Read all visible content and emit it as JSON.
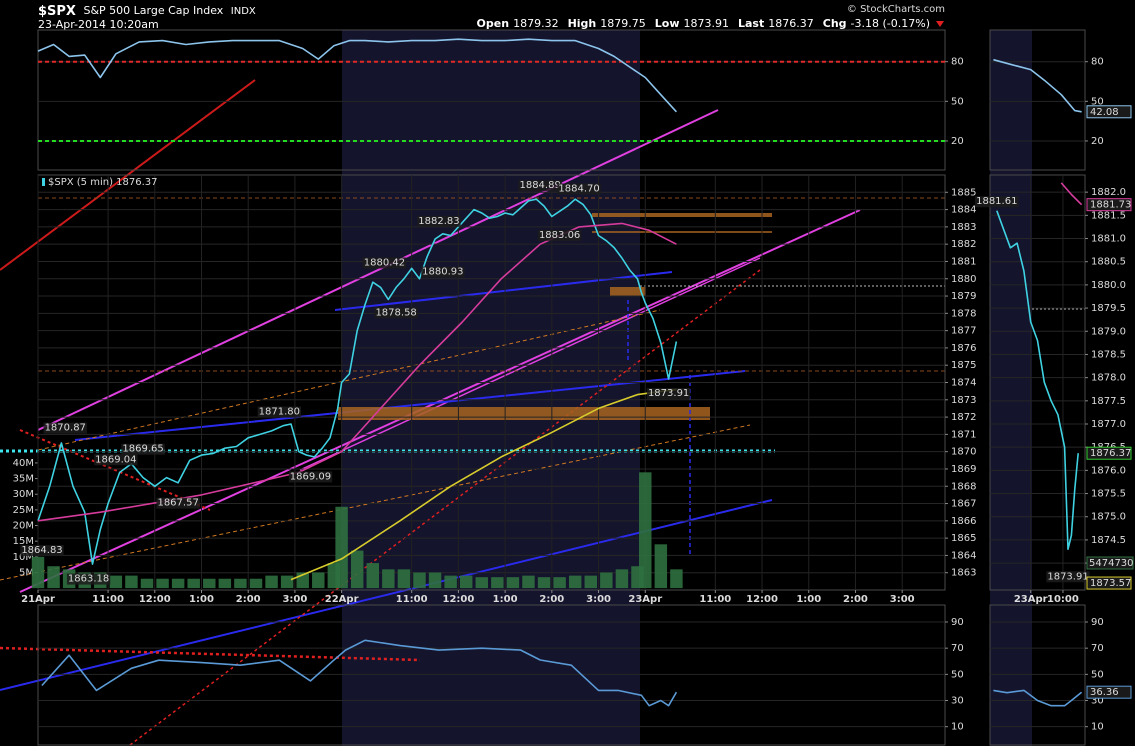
{
  "header": {
    "symbol": "$SPX",
    "name": "S&P 500 Large Cap Index",
    "exchange": "INDX",
    "timestamp": "23-Apr-2014 10:20am",
    "credit": "© StockCharts.com",
    "stats": [
      {
        "label": "Open",
        "value": "1879.32"
      },
      {
        "label": "High",
        "value": "1879.75"
      },
      {
        "label": "Low",
        "value": "1873.91"
      },
      {
        "label": "Last",
        "value": "1876.37"
      },
      {
        "label": "Chg",
        "value": "-3.18 (-0.17%)"
      }
    ]
  },
  "chart_data": [
    {
      "type": "line",
      "xlim": [
        0,
        233
      ],
      "ylim": [
        -2,
        104
      ],
      "yticks": [
        20,
        50,
        80
      ],
      "grid": true,
      "reference_lines": [
        {
          "value": 80,
          "color": "#e02828"
        },
        {
          "value": 20,
          "color": "#22dd22"
        }
      ],
      "series": [
        {
          "color": "#8cc4ec",
          "x": [
            0,
            4,
            8,
            12,
            16,
            20,
            26,
            32,
            38,
            44,
            50,
            56,
            62,
            68,
            72,
            76,
            80,
            84,
            90,
            96,
            102,
            108,
            114,
            120,
            126,
            132,
            138,
            144,
            148,
            152,
            156,
            160,
            164
          ],
          "values": [
            88,
            93,
            84,
            85,
            68,
            86,
            95,
            96,
            93,
            95,
            96,
            96,
            96,
            90,
            82,
            92,
            96,
            96,
            95,
            96,
            96,
            97,
            96,
            96,
            97,
            96,
            96,
            90,
            84,
            76,
            68,
            55,
            42.08
          ]
        }
      ]
    },
    {
      "type": "line",
      "legend": "$SPX (5 min) 1876.37",
      "xlim": [
        0,
        233
      ],
      "ylim": [
        1862,
        1886
      ],
      "yticks": [
        1863,
        1864,
        1865,
        1866,
        1867,
        1868,
        1869,
        1870,
        1871,
        1872,
        1873,
        1874,
        1875,
        1876,
        1877,
        1878,
        1879,
        1880,
        1881,
        1882,
        1883,
        1884,
        1885
      ],
      "y2lim": [
        -600000,
        132000000
      ],
      "y2ticks": [
        {
          "value": 5000000,
          "label": "5M"
        },
        {
          "value": 10000000,
          "label": "10M"
        },
        {
          "value": 15000000,
          "label": "15M"
        },
        {
          "value": 20000000,
          "label": "20M"
        },
        {
          "value": 25000000,
          "label": "25M"
        },
        {
          "value": 30000000,
          "label": "30M"
        },
        {
          "value": 35000000,
          "label": "35M"
        },
        {
          "value": 40000000,
          "label": "40M"
        }
      ],
      "xticks": [
        {
          "value": 0,
          "label": "21Apr"
        },
        {
          "value": 18,
          "label": "11:00"
        },
        {
          "value": 30,
          "label": "12:00"
        },
        {
          "value": 42,
          "label": "1:00"
        },
        {
          "value": 54,
          "label": "2:00"
        },
        {
          "value": 66,
          "label": "3:00"
        },
        {
          "value": 78,
          "label": "22Apr"
        },
        {
          "value": 96,
          "label": "11:00"
        },
        {
          "value": 108,
          "label": "12:00"
        },
        {
          "value": 120,
          "label": "1:00"
        },
        {
          "value": 132,
          "label": "2:00"
        },
        {
          "value": 144,
          "label": "3:00"
        },
        {
          "value": 156,
          "label": "23Apr"
        },
        {
          "value": 174,
          "label": "11:00"
        },
        {
          "value": 186,
          "label": "12:00"
        },
        {
          "value": 198,
          "label": "1:00"
        },
        {
          "value": 210,
          "label": "2:00"
        },
        {
          "value": 222,
          "label": "3:00"
        }
      ],
      "grid": true,
      "series": [
        {
          "color": "#3fd2e2",
          "x": [
            0,
            3,
            6,
            9,
            12,
            14,
            16,
            18,
            21,
            24,
            27,
            30,
            33,
            36,
            39,
            42,
            45,
            48,
            51,
            54,
            57,
            60,
            63,
            65,
            67,
            69,
            71,
            73,
            75,
            77,
            78,
            80,
            82,
            84,
            86,
            88,
            90,
            92,
            94,
            96,
            98,
            100,
            102,
            104,
            106,
            108,
            110,
            112,
            114,
            116,
            118,
            120,
            122,
            124,
            126,
            128,
            130,
            132,
            134,
            136,
            138,
            140,
            142,
            144,
            146,
            148,
            150,
            152,
            154,
            155,
            156,
            158,
            160,
            162,
            164
          ],
          "values": [
            1866,
            1868,
            1870.5,
            1868,
            1866.5,
            1863.5,
            1865.5,
            1867,
            1868.8,
            1869.3,
            1868.5,
            1868,
            1868.5,
            1868.2,
            1869.5,
            1869.8,
            1869.9,
            1870.2,
            1870.3,
            1870.8,
            1871,
            1871.2,
            1871.5,
            1871.6,
            1870,
            1869.8,
            1869.7,
            1870.2,
            1870.8,
            1872.5,
            1874,
            1874.5,
            1877,
            1878.5,
            1879.8,
            1879.5,
            1878.8,
            1879.5,
            1880,
            1880.6,
            1880,
            1881.3,
            1882.3,
            1882.6,
            1882.5,
            1883,
            1883.5,
            1884,
            1883.8,
            1883.5,
            1883.6,
            1883.8,
            1883.7,
            1884.1,
            1884.5,
            1884.6,
            1884.2,
            1883.6,
            1883.9,
            1884.2,
            1884.6,
            1884.3,
            1883.7,
            1882.5,
            1882.2,
            1881.8,
            1881.2,
            1880.5,
            1880,
            1879.2,
            1878.6,
            1877.7,
            1876.3,
            1874.2,
            1876.37
          ]
        },
        {
          "color": "#d63c9c",
          "x": [
            0,
            16,
            42,
            67,
            78,
            88,
            98,
            109,
            119,
            129,
            139,
            150,
            157,
            164
          ],
          "values": [
            1866,
            1866.5,
            1867.5,
            1868.8,
            1870,
            1872.5,
            1875,
            1877.5,
            1880,
            1882,
            1883,
            1883.2,
            1882.8,
            1882
          ]
        },
        {
          "color": "#d8cc2c",
          "x": [
            65,
            78,
            93,
            106,
            119,
            131,
            144,
            154,
            164
          ],
          "values": [
            1862.6,
            1863.8,
            1866,
            1868,
            1869.7,
            1871,
            1872.5,
            1873.3,
            1873.6
          ]
        },
        {
          "type": "bar",
          "axis": "y2",
          "color": "#2f7040",
          "x": [
            0,
            4,
            8,
            12,
            16,
            20,
            24,
            28,
            32,
            36,
            40,
            44,
            48,
            52,
            56,
            60,
            64,
            68,
            72,
            76,
            78,
            82,
            86,
            90,
            94,
            98,
            102,
            106,
            110,
            114,
            118,
            122,
            126,
            130,
            134,
            138,
            142,
            146,
            150,
            154,
            156,
            160,
            164
          ],
          "values": [
            10000000,
            7000000,
            6000000,
            5000000,
            5000000,
            4000000,
            4000000,
            3000000,
            3000000,
            3000000,
            3000000,
            3000000,
            3000000,
            3000000,
            3000000,
            4000000,
            4000000,
            5000000,
            5000000,
            8000000,
            26000000,
            12000000,
            8000000,
            6000000,
            6000000,
            5000000,
            5000000,
            4000000,
            4000000,
            3500000,
            3500000,
            3500000,
            4000000,
            3500000,
            3500000,
            4000000,
            4000000,
            5000000,
            6000000,
            7000000,
            37000000,
            14000000,
            6000000
          ]
        }
      ],
      "annotations": [
        {
          "x": 7,
          "value": 1870.87
        },
        {
          "x": 0,
          "value": 1864.83
        },
        {
          "x": 13,
          "value": 1863.18
        },
        {
          "x": 20,
          "value": 1869.04
        },
        {
          "x": 27,
          "value": 1869.65
        },
        {
          "x": 36,
          "value": 1867.57
        },
        {
          "x": 62,
          "value": 1871.8,
          "label": "1871.80"
        },
        {
          "x": 70,
          "value": 1869.09
        },
        {
          "x": 89,
          "value": 1880.42
        },
        {
          "x": 92,
          "value": 1878.58
        },
        {
          "x": 104,
          "value": 1880.93
        },
        {
          "x": 103,
          "value": 1882.83
        },
        {
          "x": 129,
          "value": 1884.89
        },
        {
          "x": 139,
          "value": 1884.7,
          "label": "1884.70"
        },
        {
          "x": 134,
          "value": 1883.06
        },
        {
          "x": 162,
          "value": 1873.91
        }
      ]
    },
    {
      "type": "line",
      "xlim": [
        0,
        233
      ],
      "ylim": [
        -4,
        103
      ],
      "yticks": [
        10,
        30,
        50,
        70,
        90
      ],
      "grid": true,
      "series": [
        {
          "color": "#5a9ad6",
          "x": [
            1,
            8,
            15,
            24,
            31,
            42,
            52,
            62,
            70,
            76,
            79,
            84,
            93,
            103,
            114,
            124,
            129,
            137,
            144,
            149,
            155,
            157,
            160,
            162,
            164
          ],
          "values": [
            41.5,
            64.6,
            37.7,
            54.6,
            60.8,
            59,
            57,
            60.8,
            45,
            60.8,
            68.5,
            76,
            72,
            68.5,
            70,
            68.5,
            61,
            57,
            37.7,
            37.7,
            34,
            26,
            30,
            26,
            36.36
          ]
        }
      ]
    },
    {
      "type": "line",
      "xlim": [
        -1,
        27
      ],
      "ylim": [
        -2,
        104
      ],
      "yticks": [
        20,
        50,
        80
      ],
      "grid": true,
      "series": [
        {
          "color": "#8cc4ec",
          "x": [
            0,
            5,
            11,
            15,
            20,
            24,
            26
          ],
          "values": [
            81.5,
            78,
            74,
            66,
            55,
            43,
            42.08
          ]
        }
      ],
      "axis_markers": [
        {
          "value": 42.08,
          "color": "#8cc4ec"
        }
      ]
    },
    {
      "type": "line",
      "xlim": [
        -1,
        27
      ],
      "ylim": [
        1873.42,
        1882.37
      ],
      "yticks": [
        {
          "value": 1874,
          "label": "1874.0"
        },
        1874.5,
        {
          "value": 1875,
          "label": "1875.0"
        },
        1875.5,
        {
          "value": 1876,
          "label": "1876.0"
        },
        1876.5,
        {
          "value": 1877,
          "label": "1877.0"
        },
        1877.5,
        {
          "value": 1878,
          "label": "1878.0"
        },
        1878.5,
        {
          "value": 1879,
          "label": "1879.0"
        },
        1879.5,
        {
          "value": 1880,
          "label": "1880.0"
        },
        1880.5,
        {
          "value": 1881,
          "label": "1881.0"
        },
        1881.5,
        {
          "value": 1882,
          "label": "1882.0"
        }
      ],
      "xticks": [
        {
          "value": 11,
          "label": "23Apr"
        },
        {
          "value": 20.5,
          "label": "10:00"
        }
      ],
      "grid": true,
      "series": [
        {
          "color": "#3fd2e2",
          "x": [
            1,
            3,
            5,
            7,
            9,
            11,
            13,
            15,
            17,
            19,
            21,
            22,
            23,
            24,
            25
          ],
          "values": [
            1881.6,
            1881.2,
            1880.8,
            1880.9,
            1880.3,
            1879.2,
            1878.8,
            1877.9,
            1877.5,
            1877.2,
            1876.5,
            1874.3,
            1874.6,
            1875.6,
            1876.37
          ]
        },
        {
          "color": "#d63c9c",
          "x": [
            20,
            23,
            26
          ],
          "values": [
            1882.2,
            1881.95,
            1881.73
          ]
        }
      ],
      "annotations": [
        {
          "x": 1,
          "value": 1881.61
        },
        {
          "x": 22,
          "value": 1873.91
        }
      ],
      "axis_markers": [
        {
          "value": 1881.73,
          "color": "#d63c9c"
        },
        {
          "value": 1876.37,
          "color": "#33cc33"
        },
        {
          "value": 1873.57,
          "color": "#d8cc2c"
        }
      ],
      "volume_marker": 5474730
    },
    {
      "type": "line",
      "xlim": [
        -1,
        27
      ],
      "ylim": [
        -4,
        103
      ],
      "yticks": [
        10,
        30,
        50,
        70,
        90
      ],
      "grid": true,
      "series": [
        {
          "color": "#5a9ad6",
          "x": [
            0,
            4,
            9,
            13,
            17,
            21,
            23,
            26
          ],
          "values": [
            37.7,
            36,
            37.7,
            30,
            26,
            26,
            30,
            36.36
          ]
        }
      ],
      "axis_markers": [
        {
          "value": 36.36,
          "color": "#5a9ad6"
        }
      ]
    }
  ]
}
